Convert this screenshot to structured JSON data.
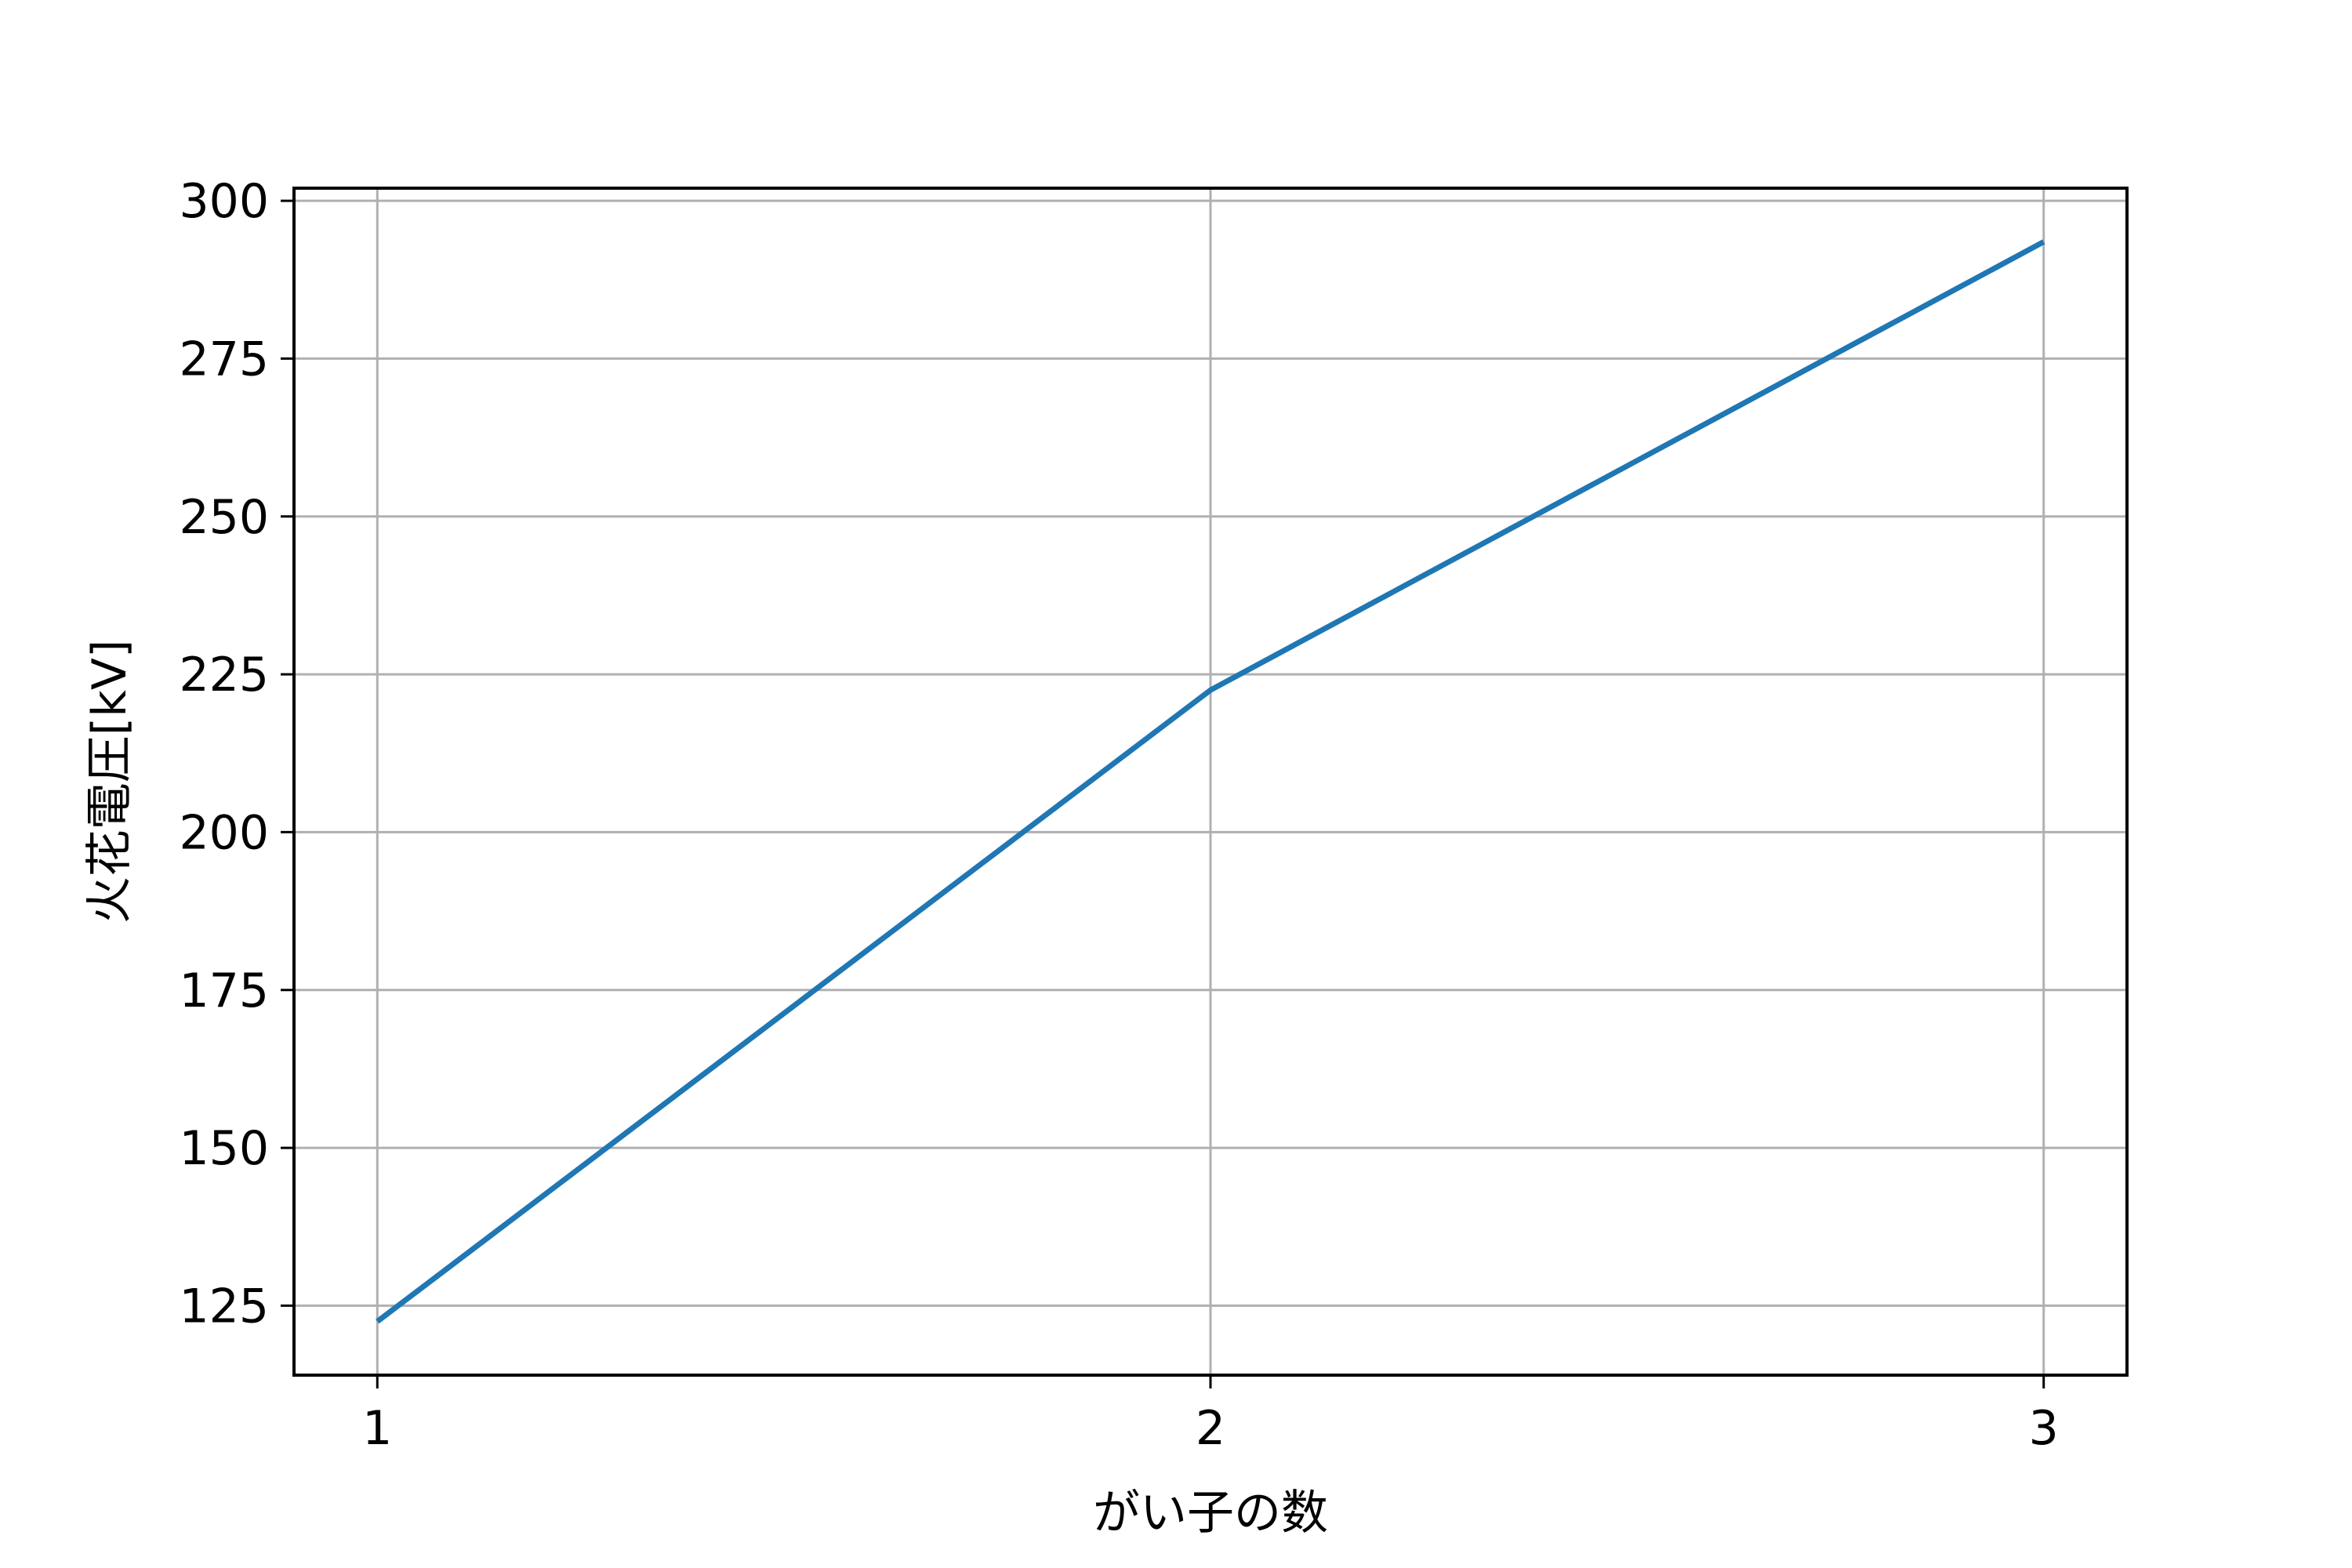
{
  "chart_data": {
    "type": "line",
    "xlabel": "がい子の数",
    "ylabel": "火花電圧[kV]",
    "x": [
      1,
      2,
      3
    ],
    "xticks": [
      1,
      2,
      3
    ],
    "xtick_labels": [
      "1",
      "2",
      "3"
    ],
    "xlim": [
      0.9,
      3.1
    ],
    "ylim": [
      114,
      302
    ],
    "yticks": [
      125,
      150,
      175,
      200,
      225,
      250,
      275,
      300
    ],
    "ytick_labels": [
      "125",
      "150",
      "175",
      "200",
      "225",
      "250",
      "275",
      "300"
    ],
    "series": [
      {
        "values": [
          122.5,
          222.5,
          293.5
        ],
        "color": "#1f77b4"
      }
    ],
    "grid": true,
    "grid_color": "#b0b0b0"
  }
}
